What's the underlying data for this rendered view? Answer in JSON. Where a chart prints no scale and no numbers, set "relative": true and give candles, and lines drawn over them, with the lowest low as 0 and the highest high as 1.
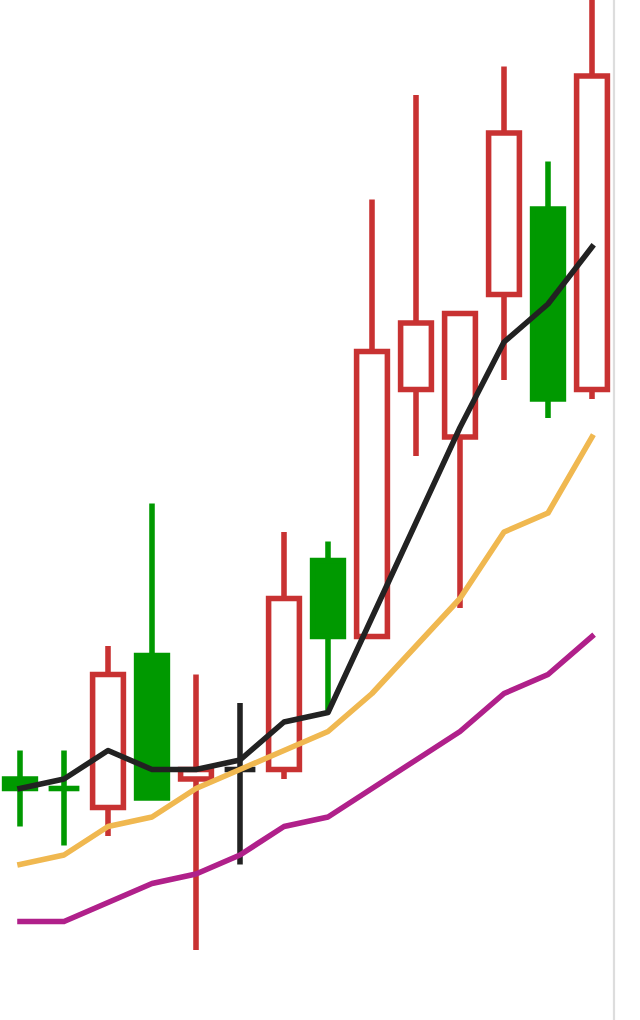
{
  "chart_data": {
    "type": "candlestick",
    "relative": true,
    "categories": [
      null,
      null,
      null,
      null,
      null,
      null,
      null,
      null,
      null,
      null,
      null,
      null,
      null,
      null
    ],
    "ohlc": [
      [
        0.18,
        0.21,
        0.13,
        0.17
      ],
      [
        0.17,
        0.21,
        0.11,
        0.17
      ],
      [
        0.15,
        0.32,
        0.12,
        0.29
      ],
      [
        0.31,
        0.47,
        0.16,
        0.16
      ],
      [
        0.18,
        0.29,
        0.0,
        0.19
      ],
      [
        0.19,
        0.26,
        0.09,
        0.19
      ],
      [
        0.19,
        0.44,
        0.18,
        0.37
      ],
      [
        0.41,
        0.43,
        0.25,
        0.33
      ],
      [
        0.33,
        0.79,
        0.33,
        0.63
      ],
      [
        0.59,
        0.9,
        0.52,
        0.66
      ],
      [
        0.54,
        0.67,
        0.36,
        0.67
      ],
      [
        0.69,
        0.93,
        0.6,
        0.86
      ],
      [
        0.78,
        0.83,
        0.56,
        0.58
      ],
      [
        0.59,
        1.0,
        0.58,
        0.92
      ]
    ],
    "colors": [
      "#009900",
      "#009900",
      "#c83232",
      "#009900",
      "#c83232",
      "#222222",
      "#c83232",
      "#009900",
      "#c83232",
      "#c83232",
      "#c83232",
      "#c83232",
      "#009900",
      "#c83232"
    ],
    "series": [
      {
        "type": "line",
        "color": "#222222",
        "values": [
          0.17,
          0.18,
          0.21,
          0.19,
          0.19,
          0.2,
          0.24,
          0.25,
          0.35,
          0.45,
          0.55,
          0.64,
          0.68,
          0.74
        ]
      },
      {
        "type": "line",
        "color": "#f0b850",
        "values": [
          0.09,
          0.1,
          0.13,
          0.14,
          0.17,
          0.19,
          0.21,
          0.23,
          0.27,
          0.32,
          0.37,
          0.44,
          0.46,
          0.54
        ]
      },
      {
        "type": "line",
        "color": "#b0208a",
        "values": [
          0.03,
          0.03,
          0.05,
          0.07,
          0.08,
          0.1,
          0.13,
          0.14,
          0.17,
          0.2,
          0.23,
          0.27,
          0.29,
          0.33
        ]
      }
    ]
  }
}
